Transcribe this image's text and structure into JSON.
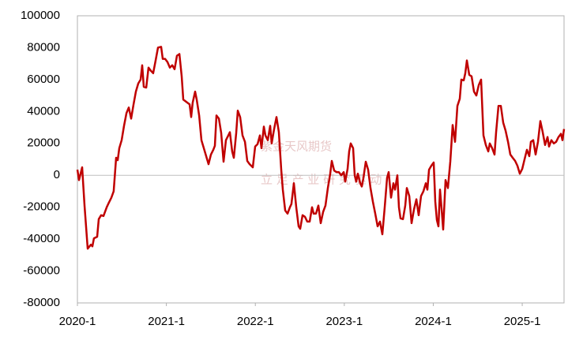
{
  "chart_data": {
    "type": "line",
    "watermark": "紫金天风期货",
    "watermark_sub": "立 足 产 业 研 究 驱 动",
    "x": [
      2020.0,
      2020.018,
      2020.053,
      2020.08,
      2020.115,
      2020.151,
      2020.169,
      2020.186,
      2020.222,
      2020.24,
      2020.266,
      2020.293,
      2020.329,
      2020.346,
      2020.382,
      2020.408,
      2020.435,
      2020.453,
      2020.471,
      2020.497,
      2020.524,
      2020.551,
      2020.577,
      2020.604,
      2020.63,
      2020.657,
      2020.684,
      2020.71,
      2020.728,
      2020.746,
      2020.773,
      2020.799,
      2020.826,
      2020.852,
      2020.879,
      2020.906,
      2020.941,
      2020.959,
      2020.986,
      2021.012,
      2021.039,
      2021.066,
      2021.092,
      2021.119,
      2021.146,
      2021.172,
      2021.19,
      2021.225,
      2021.261,
      2021.279,
      2021.296,
      2021.323,
      2021.341,
      2021.368,
      2021.394,
      2021.421,
      2021.447,
      2021.474,
      2021.501,
      2021.527,
      2021.545,
      2021.563,
      2021.59,
      2021.616,
      2021.643,
      2021.669,
      2021.696,
      2021.714,
      2021.74,
      2021.758,
      2021.785,
      2021.803,
      2021.829,
      2021.856,
      2021.883,
      2021.909,
      2021.936,
      2021.971,
      2021.998,
      2022.025,
      2022.051,
      2022.069,
      2022.096,
      2022.113,
      2022.14,
      2022.167,
      2022.184,
      2022.211,
      2022.238,
      2022.264,
      2022.291,
      2022.309,
      2022.335,
      2022.362,
      2022.389,
      2022.406,
      2022.433,
      2022.46,
      2022.486,
      2022.504,
      2022.531,
      2022.557,
      2022.584,
      2022.611,
      2022.637,
      2022.655,
      2022.682,
      2022.708,
      2022.735,
      2022.762,
      2022.788,
      2022.815,
      2022.842,
      2022.859,
      2022.886,
      2022.913,
      2022.939,
      2022.966,
      2022.993,
      2023.01,
      2023.037,
      2023.055,
      2023.072,
      2023.099,
      2023.117,
      2023.134,
      2023.152,
      2023.179,
      2023.197,
      2023.215,
      2023.241,
      2023.268,
      2023.294,
      2023.321,
      2023.348,
      2023.374,
      2023.401,
      2023.428,
      2023.454,
      2023.481,
      2023.499,
      2023.525,
      2023.552,
      2023.57,
      2023.596,
      2023.614,
      2023.632,
      2023.659,
      2023.685,
      2023.703,
      2023.73,
      2023.756,
      2023.783,
      2023.81,
      2023.836,
      2023.863,
      2023.889,
      2023.916,
      2023.934,
      2023.952,
      2023.978,
      2024.005,
      2024.023,
      2024.04,
      2024.058,
      2024.076,
      2024.094,
      2024.111,
      2024.138,
      2024.165,
      2024.191,
      2024.218,
      2024.245,
      2024.271,
      2024.298,
      2024.316,
      2024.342,
      2024.36,
      2024.378,
      2024.404,
      2024.431,
      2024.458,
      2024.484,
      2024.511,
      2024.538,
      2024.564,
      2024.591,
      2024.618,
      2024.635,
      2024.662,
      2024.689,
      2024.706,
      2024.733,
      2024.76,
      2024.786,
      2024.813,
      2024.84,
      2024.866,
      2024.893,
      2024.92,
      2024.946,
      2024.973,
      2025.0,
      2025.026,
      2025.053,
      2025.079,
      2025.097,
      2025.124,
      2025.15,
      2025.177,
      2025.204,
      2025.23,
      2025.257,
      2025.284,
      2025.301,
      2025.328,
      2025.355,
      2025.381,
      2025.408,
      2025.435,
      2025.452,
      2025.47
    ],
    "series": [
      {
        "color": "#c00000",
        "values": [
          3500,
          -3000,
          5000,
          -19000,
          -46000,
          -43500,
          -44500,
          -39500,
          -38500,
          -27500,
          -25000,
          -25500,
          -20000,
          -18000,
          -14000,
          -10000,
          11000,
          9500,
          17000,
          22000,
          31000,
          39000,
          42500,
          35500,
          44000,
          52500,
          57500,
          60000,
          69000,
          55500,
          55000,
          67500,
          65500,
          64000,
          72000,
          80000,
          80500,
          73000,
          73000,
          71000,
          67500,
          69000,
          66500,
          75000,
          76000,
          62000,
          47500,
          46000,
          44500,
          36500,
          45500,
          52500,
          47500,
          37500,
          22000,
          17000,
          12000,
          7000,
          13000,
          16000,
          18500,
          37500,
          35500,
          26500,
          8500,
          22000,
          25000,
          27000,
          15000,
          11000,
          26500,
          40500,
          36500,
          25000,
          21000,
          9000,
          7000,
          5000,
          18000,
          19500,
          25000,
          17000,
          30500,
          25000,
          22000,
          31000,
          20000,
          29000,
          36500,
          27000,
          3500,
          -9000,
          -22000,
          -24000,
          -20000,
          -18000,
          -5000,
          -20000,
          -32000,
          -33500,
          -25000,
          -26000,
          -29000,
          -29000,
          -20000,
          -24000,
          -24000,
          -19000,
          -30000,
          -23000,
          -19000,
          -8000,
          1000,
          9000,
          3000,
          2000,
          2000,
          0,
          2000,
          -4000,
          4000,
          15000,
          20000,
          17000,
          0,
          -4000,
          1000,
          -5000,
          -7000,
          -1500,
          8500,
          3500,
          -8000,
          -16500,
          -24000,
          -32000,
          -29000,
          -37000,
          -20000,
          -1500,
          2000,
          -14000,
          -5000,
          -9000,
          0,
          -20000,
          -27000,
          -27500,
          -19000,
          -8000,
          -13000,
          -30000,
          -21500,
          -15000,
          -25000,
          -13000,
          -10000,
          -5000,
          -9000,
          3500,
          6000,
          8000,
          -16500,
          -28000,
          -32000,
          -9000,
          -21000,
          -34000,
          -3000,
          -8000,
          8500,
          31500,
          21000,
          43500,
          48000,
          60000,
          59500,
          64000,
          72000,
          63000,
          62000,
          52500,
          50000,
          56500,
          60000,
          25000,
          19000,
          15000,
          20000,
          17000,
          13000,
          27000,
          43500,
          43500,
          33000,
          28000,
          21000,
          13000,
          11000,
          9000,
          6000,
          1000,
          4000,
          10000,
          16000,
          12000,
          21000,
          22000,
          13000,
          21000,
          34000,
          27000,
          19000,
          24000,
          18000,
          22000,
          20000,
          21000,
          24000,
          26000,
          22000,
          29000
        ]
      }
    ],
    "xlim": [
      2020,
      2025.47
    ],
    "xticks": [
      {
        "value": 2020,
        "label": "2020-1"
      },
      {
        "value": 2021,
        "label": "2021-1"
      },
      {
        "value": 2022,
        "label": "2022-1"
      },
      {
        "value": 2023,
        "label": "2023-1"
      },
      {
        "value": 2024,
        "label": "2024-1"
      },
      {
        "value": 2025,
        "label": "2025-1"
      }
    ],
    "ylim": [
      -80000,
      100000
    ],
    "yticks": [
      -80000,
      -60000,
      -40000,
      -20000,
      0,
      20000,
      40000,
      60000,
      80000,
      100000
    ],
    "negative_tick_color": "#c00000",
    "zero_line": true,
    "frame": true,
    "grid": false
  }
}
